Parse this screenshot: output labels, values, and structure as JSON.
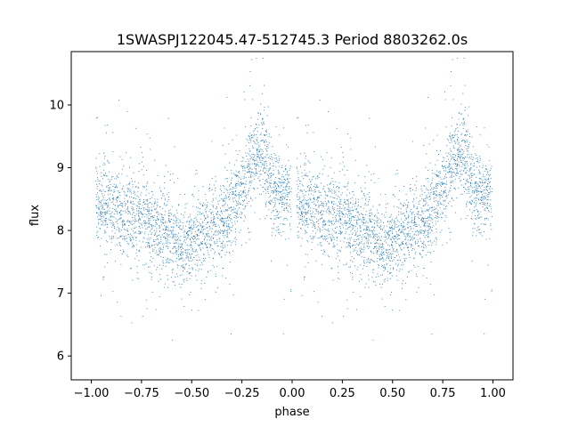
{
  "chart_data": {
    "type": "scatter",
    "title": "1SWASPJ122045.47-512745.3 Period 8803262.0s",
    "xlabel": "phase",
    "ylabel": "flux",
    "xlim": [
      -1.1,
      1.1
    ],
    "ylim": [
      5.62,
      10.85
    ],
    "x_ticks": [
      -1.0,
      -0.75,
      -0.5,
      -0.25,
      0.0,
      0.25,
      0.5,
      0.75,
      1.0
    ],
    "x_tick_labels": [
      "−1.00",
      "−0.75",
      "−0.50",
      "−0.25",
      "0.00",
      "0.25",
      "0.50",
      "0.75",
      "1.00"
    ],
    "y_ticks": [
      6,
      7,
      8,
      9,
      10
    ],
    "y_tick_labels": [
      "6",
      "7",
      "8",
      "9",
      "10"
    ],
    "grid": false,
    "marker_color": "#1f77b4",
    "series": [
      {
        "profile_phase": [
          0.0,
          0.05,
          0.1,
          0.15,
          0.2,
          0.25,
          0.3,
          0.35,
          0.4,
          0.45,
          0.5,
          0.55,
          0.6,
          0.65,
          0.7,
          0.75,
          0.8,
          0.85,
          0.88,
          0.9,
          0.95,
          1.0
        ],
        "profile_flux": [
          8.6,
          8.4,
          8.35,
          8.25,
          8.2,
          8.15,
          8.05,
          7.95,
          7.9,
          7.75,
          7.85,
          7.95,
          8.0,
          8.15,
          8.35,
          8.7,
          9.1,
          9.3,
          8.9,
          8.65,
          8.6,
          8.6
        ],
        "scatter_sigma": 0.35,
        "n_points_per_cycle": 2600
      }
    ]
  }
}
